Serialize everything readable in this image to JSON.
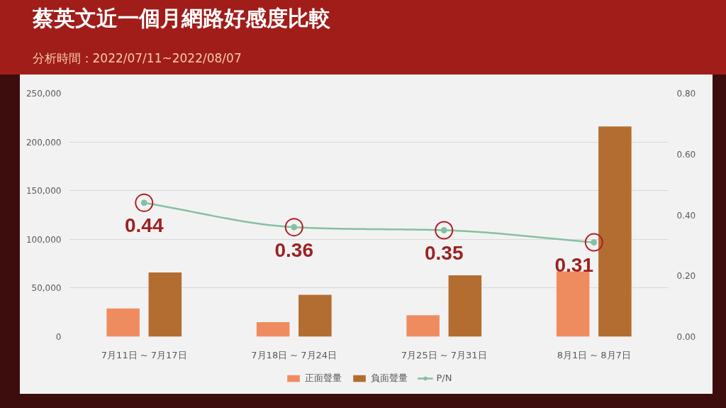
{
  "chart_data": {
    "type": "bar",
    "title": "蔡英文近一個月網路好感度比較",
    "subtitle": "分析時間：2022/07/11~2022/08/07",
    "categories": [
      "7月11日 ~ 7月17日",
      "7月18日 ~ 7月24日",
      "7月25日 ~ 7月31日",
      "8月1日 ~ 8月7日"
    ],
    "series": [
      {
        "name": "正面聲量",
        "color": "#ef8c5f",
        "values": [
          29000,
          15000,
          22000,
          67000
        ]
      },
      {
        "name": "負面聲量",
        "color": "#b36d30",
        "values": [
          66000,
          43000,
          63000,
          216000
        ]
      },
      {
        "name": "P/N",
        "type": "line",
        "axis": "y2",
        "color": "#86c0a2",
        "values": [
          0.44,
          0.36,
          0.35,
          0.31
        ],
        "value_labels": [
          "0.44",
          "0.36",
          "0.35",
          "0.31"
        ]
      }
    ],
    "ylim": [
      0,
      250000
    ],
    "yticks": [
      0,
      {
        "value": 50000,
        "label": "50,000"
      },
      {
        "value": 100000,
        "label": "100,000"
      },
      {
        "value": 150000,
        "label": "150,000"
      },
      {
        "value": 200000,
        "label": "200,000"
      },
      {
        "value": 250000,
        "label": "250,000"
      }
    ],
    "y2lim": [
      0,
      0.8
    ],
    "y2ticks": [
      {
        "value": 0,
        "label": "0.00"
      },
      {
        "value": 0.2,
        "label": "0.20"
      },
      {
        "value": 0.4,
        "label": "0.40"
      },
      {
        "value": 0.6,
        "label": "0.60"
      },
      {
        "value": 0.8,
        "label": "0.80"
      }
    ],
    "grid": "y",
    "legend": "bottom",
    "marker": "circle"
  }
}
